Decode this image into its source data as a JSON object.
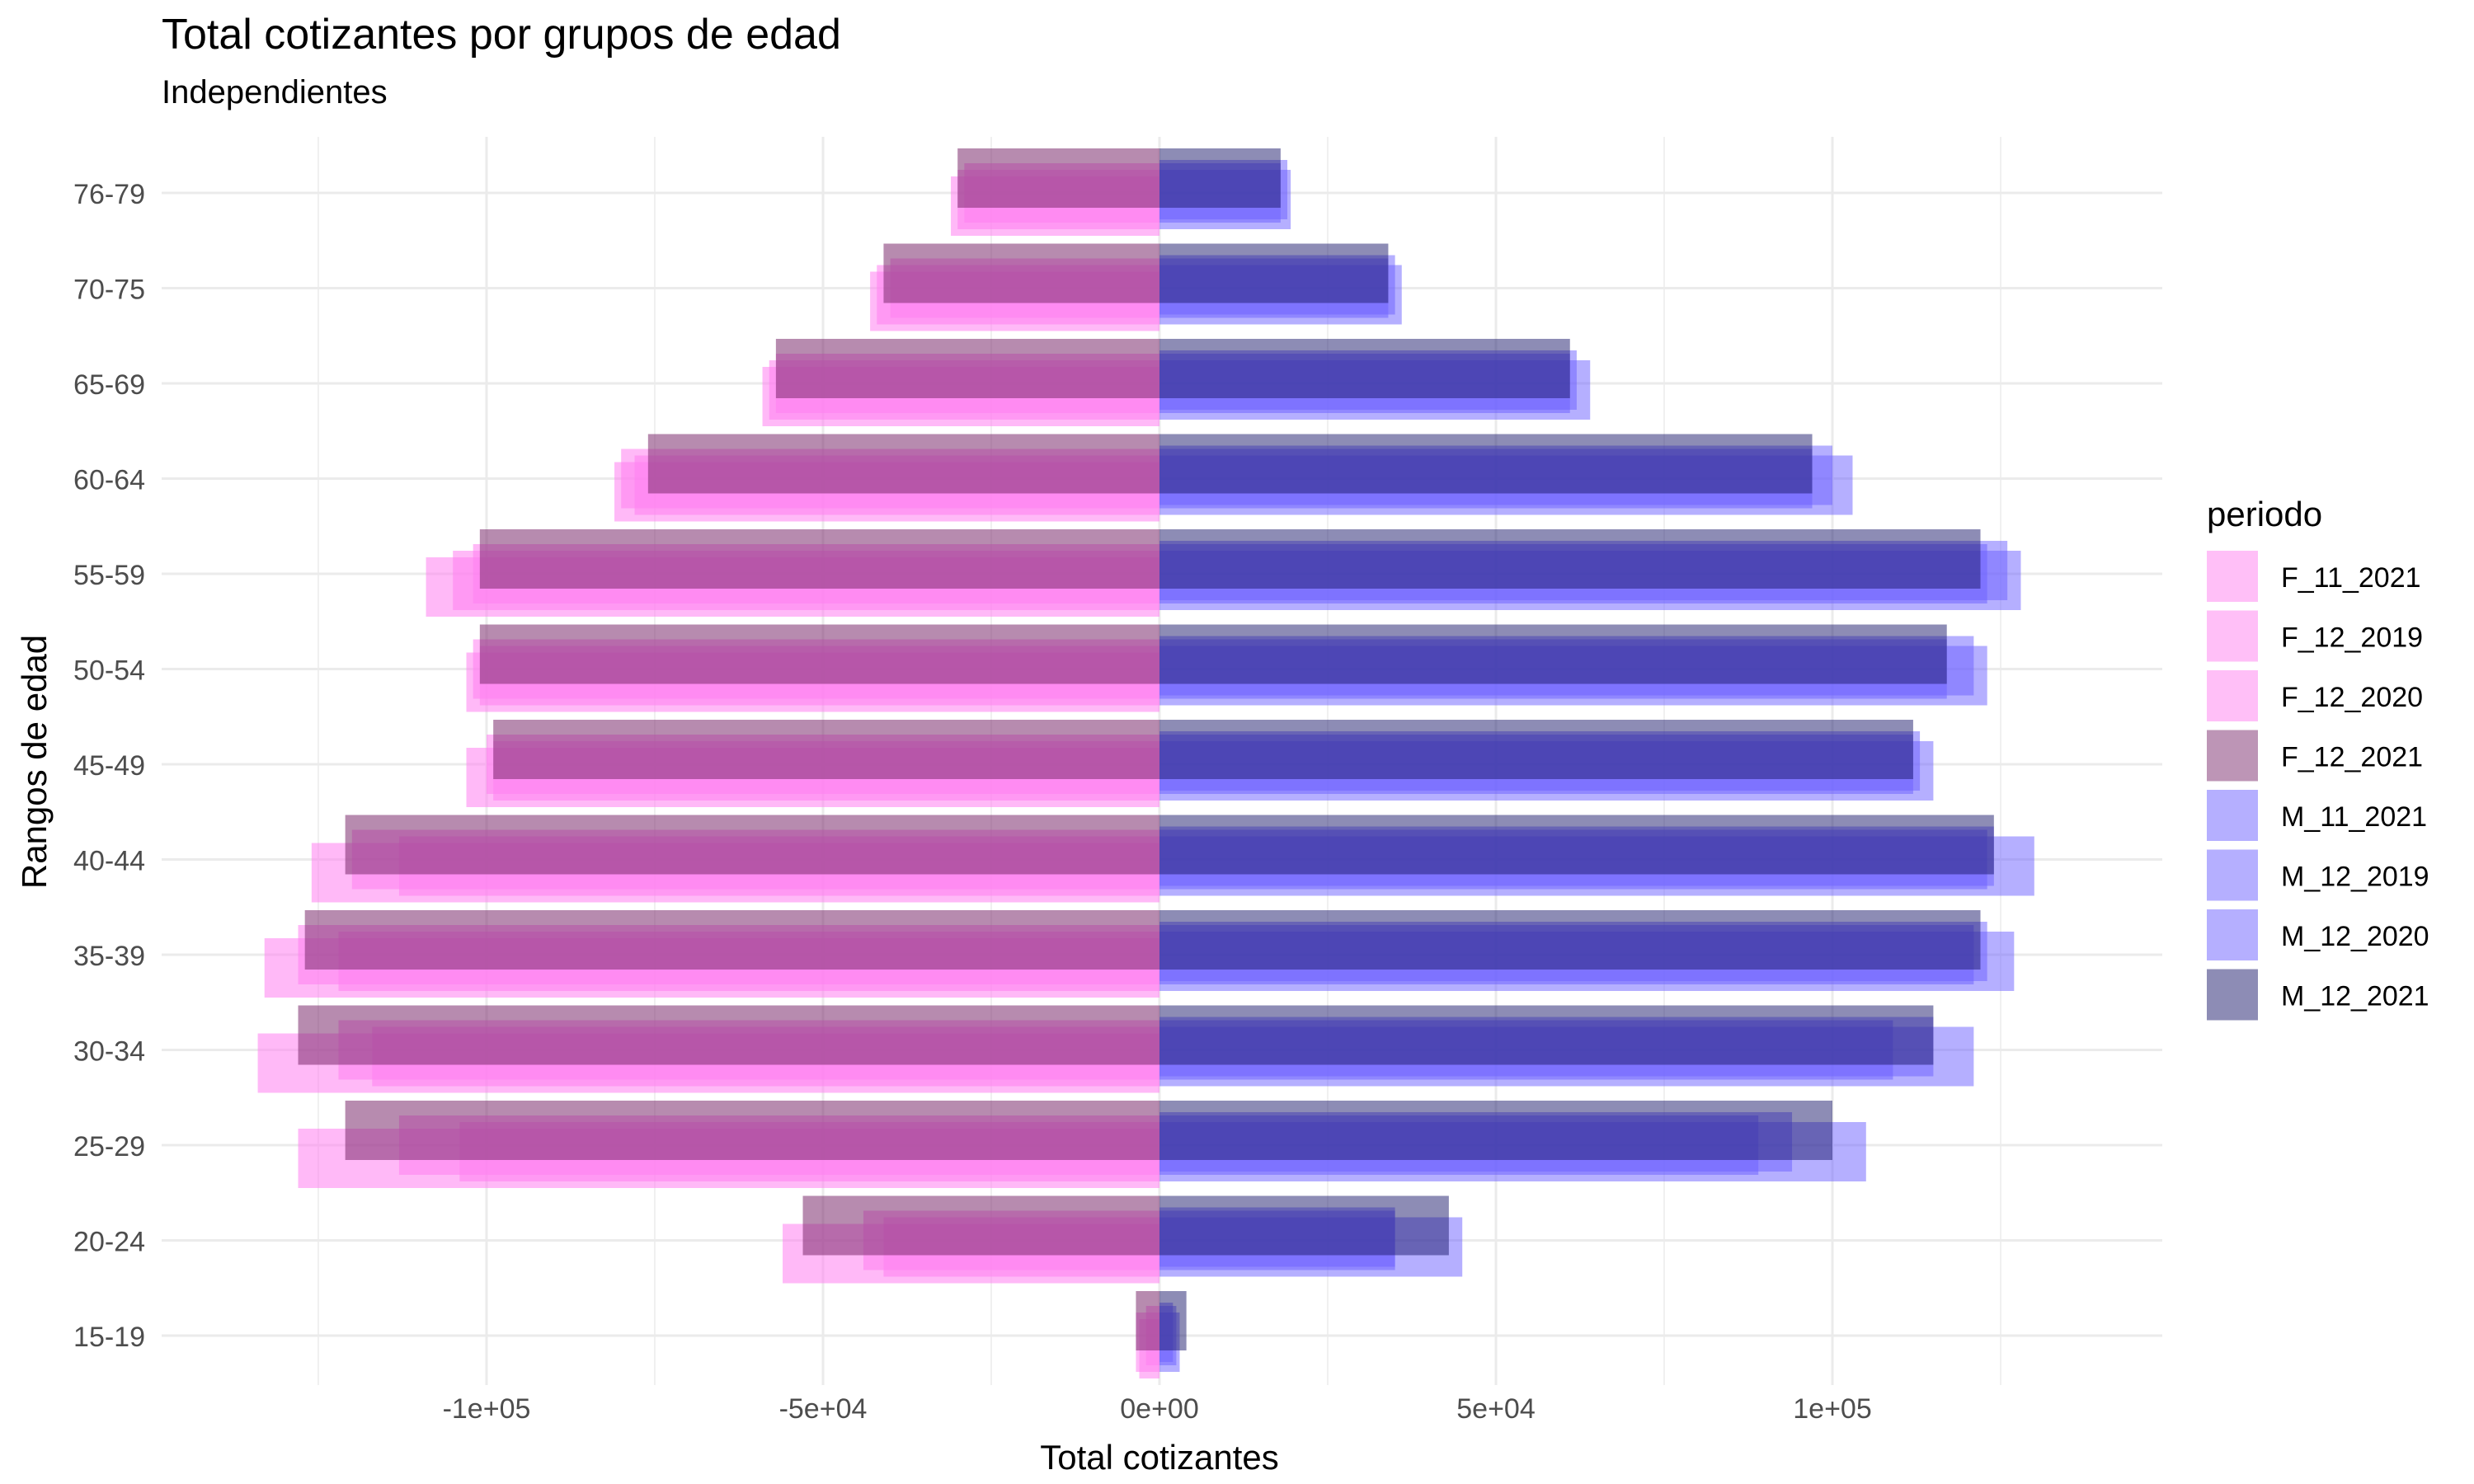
{
  "chart_data": {
    "type": "bar",
    "orientation": "horizontal",
    "layout": "population-pyramid",
    "title": "Total cotizantes por grupos de edad",
    "subtitle": "Independientes",
    "xlabel": "Total cotizantes",
    "ylabel": "Rangos de edad",
    "xlim": [
      -150000,
      150000
    ],
    "x_ticks": [
      -100000,
      -50000,
      0,
      50000,
      100000
    ],
    "x_tick_labels": [
      "-1e+05",
      "-5e+04",
      "0e+00",
      "5e+04",
      "1e+05"
    ],
    "grid": true,
    "legend_title": "periodo",
    "legend_position": "right",
    "categories": [
      "15-19",
      "20-24",
      "25-29",
      "30-34",
      "35-39",
      "40-44",
      "45-49",
      "50-54",
      "55-59",
      "60-64",
      "65-69",
      "70-75",
      "76-79"
    ],
    "series": [
      {
        "name": "F_11_2021",
        "color": "#ff80f0",
        "values": [
          -3500,
          -41000,
          -104000,
          -117000,
          -122000,
          -113000,
          -99000,
          -101000,
          -105000,
          -78000,
          -58000,
          -42000,
          -30000
        ]
      },
      {
        "name": "F_12_2019",
        "color": "#ff80f0",
        "values": [
          -3000,
          -56000,
          -128000,
          -134000,
          -133000,
          -126000,
          -103000,
          -103000,
          -109000,
          -81000,
          -59000,
          -43000,
          -31000
        ]
      },
      {
        "name": "F_12_2020",
        "color": "#ff80f0",
        "values": [
          -2000,
          -44000,
          -113000,
          -122000,
          -128000,
          -120000,
          -100000,
          -102000,
          -102000,
          -80000,
          -57000,
          -40000,
          -29000
        ]
      },
      {
        "name": "F_12_2021",
        "color": "#7b2c6e",
        "values": [
          -3500,
          -53000,
          -121000,
          -128000,
          -127000,
          -121000,
          -99000,
          -101000,
          -101000,
          -76000,
          -57000,
          -41000,
          -30000
        ]
      },
      {
        "name": "M_11_2021",
        "color": "#6b60ff",
        "values": [
          2500,
          35000,
          89000,
          109000,
          121000,
          123000,
          112000,
          117000,
          123000,
          97000,
          61000,
          34000,
          18000
        ]
      },
      {
        "name": "M_12_2019",
        "color": "#6b60ff",
        "values": [
          3000,
          45000,
          105000,
          121000,
          127000,
          130000,
          115000,
          123000,
          128000,
          103000,
          64000,
          36000,
          19500
        ]
      },
      {
        "name": "M_12_2020",
        "color": "#6b60ff",
        "values": [
          2000,
          35000,
          94000,
          115000,
          123000,
          124000,
          113000,
          121000,
          126000,
          100000,
          62000,
          35000,
          19000
        ]
      },
      {
        "name": "M_12_2021",
        "color": "#1c1a6b",
        "values": [
          4000,
          43000,
          100000,
          115000,
          122000,
          124000,
          112000,
          117000,
          122000,
          97000,
          61000,
          34000,
          18000
        ]
      }
    ]
  }
}
